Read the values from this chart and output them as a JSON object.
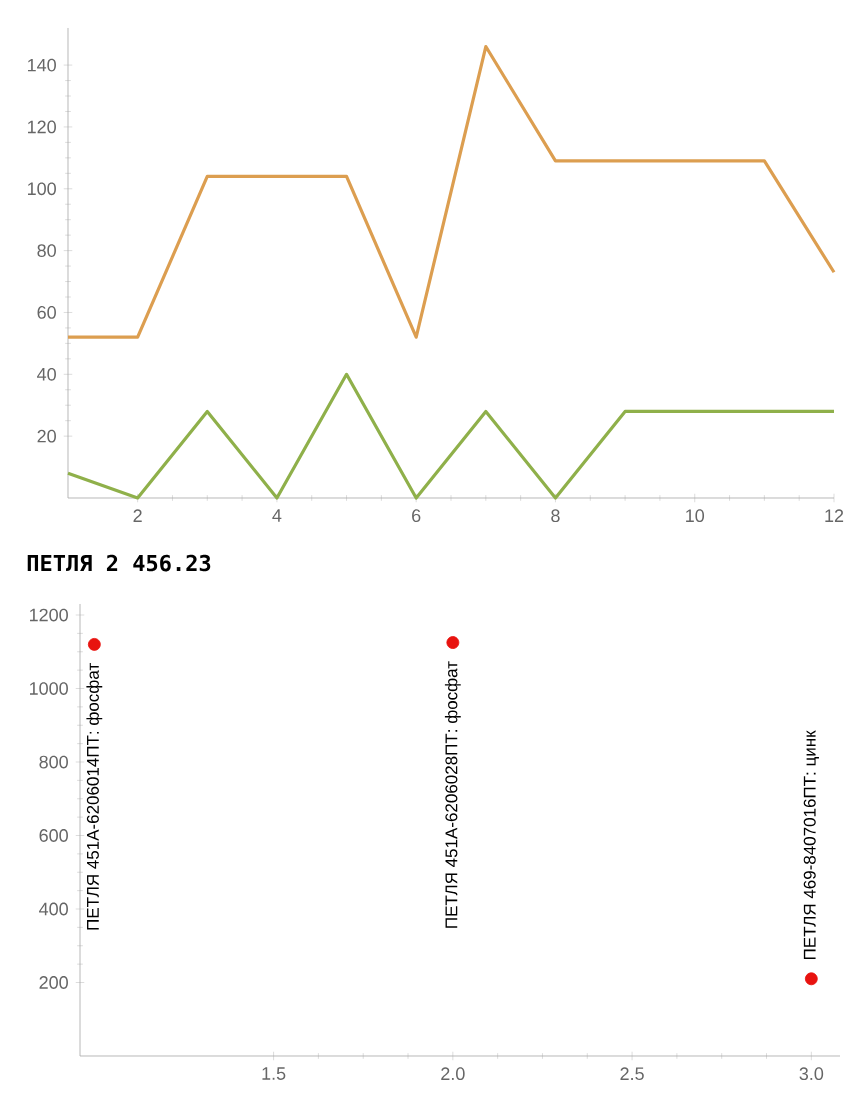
{
  "chart_data": [
    {
      "type": "line",
      "x": [
        1,
        2,
        3,
        4,
        5,
        6,
        7,
        8,
        9,
        10,
        11,
        12
      ],
      "xlim": [
        1,
        12
      ],
      "ylim": [
        0,
        152
      ],
      "xticks": [
        2,
        4,
        6,
        8,
        10,
        12
      ],
      "yticks": [
        20,
        40,
        60,
        80,
        100,
        120,
        140
      ],
      "marker": "none",
      "series": [
        {
          "color": "#dc9e50",
          "values": [
            52,
            52,
            104,
            104,
            104,
            52,
            146,
            109,
            109,
            109,
            109,
            73
          ]
        },
        {
          "color": "#8fb04a",
          "values": [
            8,
            0,
            28,
            0,
            40,
            0,
            28,
            0,
            28,
            28,
            28,
            28
          ]
        }
      ]
    },
    {
      "type": "scatter",
      "title": "ПЕТЛЯ  2 456.23",
      "x": [
        1,
        2,
        3
      ],
      "xlim": [
        0.96,
        3.08
      ],
      "ylim": [
        0,
        1230
      ],
      "xticks": [
        1.5,
        {
          "value": 2,
          "label": "2.0"
        },
        2.5,
        {
          "value": 3,
          "label": "3.0"
        }
      ],
      "yticks": [
        200,
        400,
        600,
        800,
        1000,
        1200
      ],
      "marker": "circle",
      "series": [
        {
          "color": "#e8130f",
          "values": [
            1120,
            1125,
            210
          ]
        }
      ],
      "annotations": [
        {
          "text": "ПЕТЛЯ 451А-6206014ПТ: фосфат",
          "x": 1,
          "y": 1120
        },
        {
          "text": "ПЕТЛЯ 451А-6206028ПТ: фосфат",
          "x": 2,
          "y": 1125
        },
        {
          "text": "ПЕТЛЯ 469-8407016ПТ: цинк",
          "x": 3,
          "y": 210
        }
      ]
    }
  ]
}
